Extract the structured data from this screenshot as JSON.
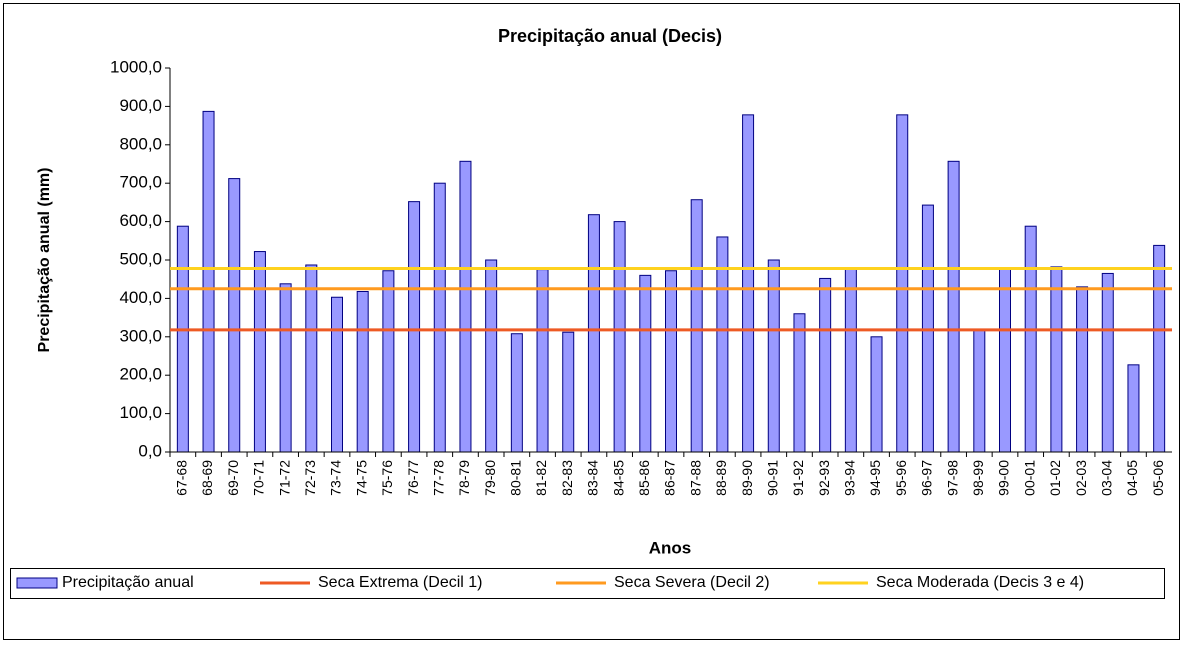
{
  "chart_data": {
    "type": "bar",
    "title": "Precipitação anual (Decis)",
    "x_label": "Anos",
    "y_label": "Precipitação anual (mm)",
    "categories": [
      "67-68",
      "68-69",
      "69-70",
      "70-71",
      "71-72",
      "72-73",
      "73-74",
      "74-75",
      "75-76",
      "76-77",
      "77-78",
      "78-79",
      "79-80",
      "80-81",
      "81-82",
      "82-83",
      "83-84",
      "84-85",
      "85-86",
      "86-87",
      "87-88",
      "88-89",
      "89-90",
      "90-91",
      "91-92",
      "92-93",
      "93-94",
      "94-95",
      "95-96",
      "96-97",
      "97-98",
      "98-99",
      "99-00",
      "00-01",
      "01-02",
      "02-03",
      "03-04",
      "04-05",
      "05-06"
    ],
    "series": [
      {
        "name": "Precipitação anual",
        "color": "#9999ff",
        "values": [
          588,
          887,
          712,
          522,
          438,
          487,
          403,
          418,
          472,
          652,
          700,
          757,
          500,
          308,
          475,
          312,
          618,
          600,
          460,
          472,
          657,
          560,
          878,
          500,
          360,
          452,
          478,
          300,
          878,
          643,
          757,
          318,
          478,
          588,
          482,
          430,
          465,
          227,
          538
        ]
      }
    ],
    "reference_lines": [
      {
        "name": "Seca Extrema (Decil 1)",
        "color": "#ee5a24",
        "value": 318
      },
      {
        "name": "Seca Severa (Decil 2)",
        "color": "#ff9a1f",
        "value": 425
      },
      {
        "name": "Seca Moderada (Decis 3 e 4)",
        "color": "#ffd21f",
        "value": 478
      }
    ],
    "ylim": [
      0,
      1000
    ],
    "yticks": [
      {
        "value": 0,
        "label": "0,0"
      },
      {
        "value": 100,
        "label": "100,0"
      },
      {
        "value": 200,
        "label": "200,0"
      },
      {
        "value": 300,
        "label": "300,0"
      },
      {
        "value": 400,
        "label": "400,0"
      },
      {
        "value": 500,
        "label": "500,0"
      },
      {
        "value": 600,
        "label": "600,0"
      },
      {
        "value": 700,
        "label": "700,0"
      },
      {
        "value": 800,
        "label": "800,0"
      },
      {
        "value": 900,
        "label": "900,0"
      },
      {
        "value": 1000,
        "label": "1000,0"
      }
    ],
    "legend": "bottom"
  }
}
